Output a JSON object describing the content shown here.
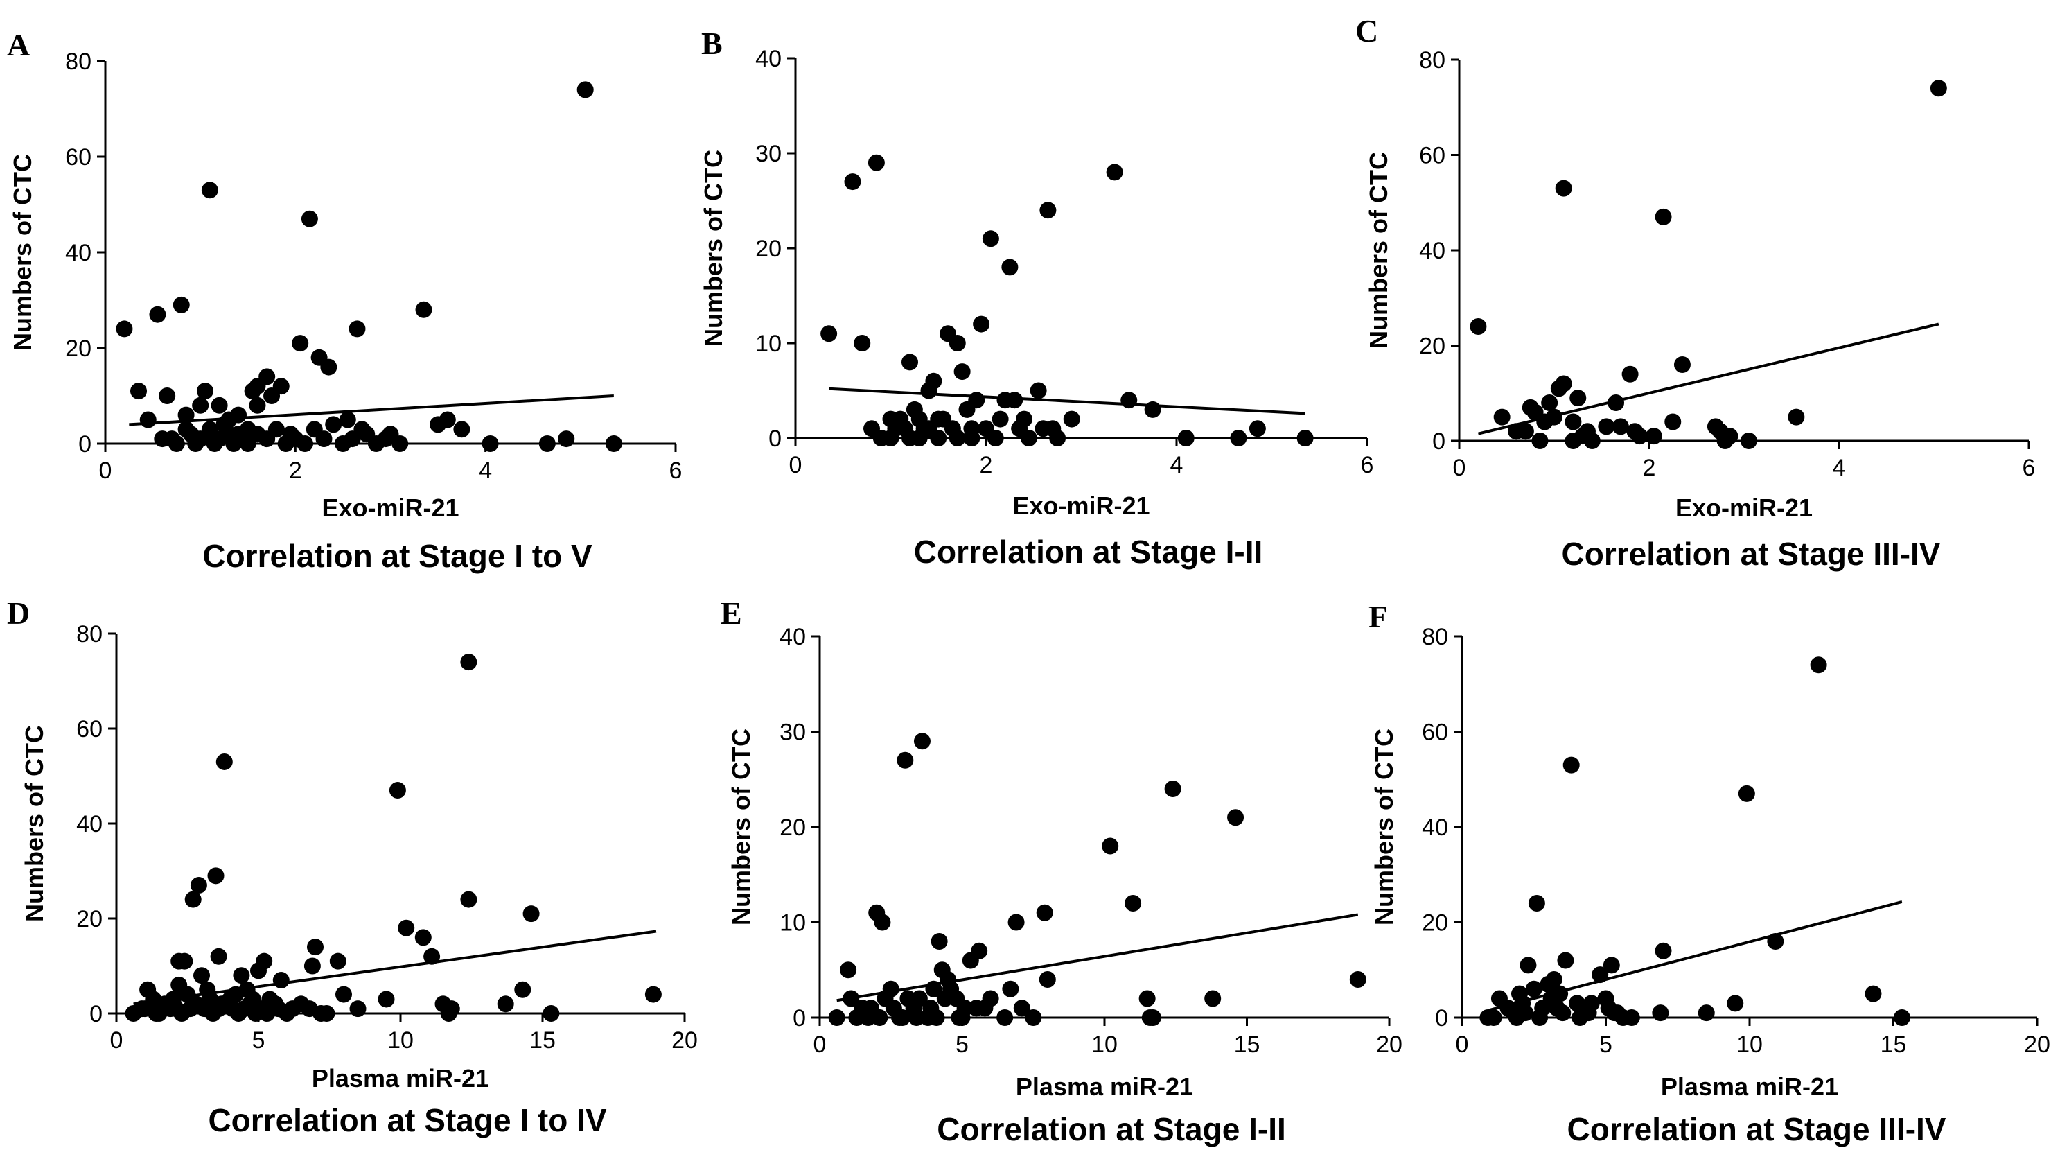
{
  "figure": {
    "background": "#ffffff",
    "ink": "#000000"
  },
  "chart_data": [
    {
      "type": "scatter",
      "letter": "A",
      "xlabel": "Exo-miR-21",
      "ylabel": "Numbers of CTC",
      "caption": "Correlation at Stage I to V",
      "xlim": [
        0,
        6
      ],
      "ylim": [
        0,
        80
      ],
      "xticks": [
        0,
        2,
        4,
        6
      ],
      "yticks": [
        0,
        20,
        40,
        60,
        80
      ],
      "trend": [
        [
          0.25,
          4
        ],
        [
          5.35,
          10
        ]
      ],
      "points": [
        [
          0.2,
          24
        ],
        [
          0.35,
          11
        ],
        [
          0.45,
          5
        ],
        [
          0.55,
          27
        ],
        [
          0.65,
          10
        ],
        [
          0.8,
          29
        ],
        [
          0.85,
          6
        ],
        [
          0.7,
          1
        ],
        [
          0.9,
          2
        ],
        [
          1.0,
          8
        ],
        [
          1.05,
          11
        ],
        [
          1.1,
          53
        ],
        [
          1.2,
          8
        ],
        [
          1.1,
          3
        ],
        [
          1.3,
          5
        ],
        [
          1.4,
          6
        ],
        [
          1.5,
          3
        ],
        [
          1.55,
          11
        ],
        [
          1.6,
          12
        ],
        [
          1.7,
          14
        ],
        [
          1.6,
          8
        ],
        [
          1.75,
          10
        ],
        [
          1.85,
          12
        ],
        [
          2.05,
          21
        ],
        [
          2.15,
          47
        ],
        [
          2.25,
          18
        ],
        [
          2.35,
          16
        ],
        [
          2.65,
          24
        ],
        [
          2.55,
          5
        ],
        [
          2.7,
          3
        ],
        [
          3.35,
          28
        ],
        [
          3.5,
          4
        ],
        [
          3.6,
          5
        ],
        [
          3.75,
          3
        ],
        [
          4.05,
          0
        ],
        [
          4.65,
          0
        ],
        [
          4.85,
          1
        ],
        [
          5.05,
          74
        ],
        [
          5.35,
          0
        ],
        [
          0.6,
          1
        ],
        [
          0.75,
          0
        ],
        [
          0.95,
          0
        ],
        [
          1.0,
          1
        ],
        [
          1.15,
          0
        ],
        [
          1.2,
          1
        ],
        [
          1.3,
          2
        ],
        [
          1.35,
          0
        ],
        [
          1.45,
          1
        ],
        [
          1.5,
          0
        ],
        [
          1.6,
          2
        ],
        [
          1.7,
          1
        ],
        [
          1.8,
          3
        ],
        [
          1.9,
          0
        ],
        [
          1.95,
          2
        ],
        [
          2.0,
          1
        ],
        [
          2.1,
          0
        ],
        [
          2.2,
          3
        ],
        [
          2.3,
          1
        ],
        [
          2.4,
          4
        ],
        [
          2.5,
          0
        ],
        [
          2.6,
          1
        ],
        [
          2.75,
          2
        ],
        [
          2.85,
          0
        ],
        [
          2.95,
          1
        ],
        [
          3.0,
          2
        ],
        [
          3.1,
          0
        ],
        [
          1.25,
          4
        ],
        [
          0.85,
          3
        ],
        [
          1.4,
          2
        ]
      ]
    },
    {
      "type": "scatter",
      "letter": "B",
      "xlabel": "Exo-miR-21",
      "ylabel": "Numbers of CTC",
      "caption": "Correlation at Stage I-II",
      "xlim": [
        0,
        6
      ],
      "ylim": [
        0,
        40
      ],
      "xticks": [
        0,
        2,
        4,
        6
      ],
      "yticks": [
        0,
        10,
        20,
        30,
        40
      ],
      "trend": [
        [
          0.35,
          5.2
        ],
        [
          5.35,
          2.6
        ]
      ],
      "points": [
        [
          0.35,
          11
        ],
        [
          0.6,
          27
        ],
        [
          0.7,
          10
        ],
        [
          0.85,
          29
        ],
        [
          0.8,
          1
        ],
        [
          0.9,
          0
        ],
        [
          1.0,
          2
        ],
        [
          1.05,
          1
        ],
        [
          1.1,
          2
        ],
        [
          1.2,
          0
        ],
        [
          1.25,
          3
        ],
        [
          1.3,
          2
        ],
        [
          1.2,
          8
        ],
        [
          1.4,
          5
        ],
        [
          1.45,
          6
        ],
        [
          1.5,
          2
        ],
        [
          1.6,
          11
        ],
        [
          1.7,
          10
        ],
        [
          1.75,
          7
        ],
        [
          1.8,
          3
        ],
        [
          1.85,
          1
        ],
        [
          1.9,
          4
        ],
        [
          1.95,
          12
        ],
        [
          2.05,
          21
        ],
        [
          2.2,
          4
        ],
        [
          2.25,
          18
        ],
        [
          2.3,
          4
        ],
        [
          2.4,
          2
        ],
        [
          2.55,
          5
        ],
        [
          2.65,
          24
        ],
        [
          2.7,
          1
        ],
        [
          2.9,
          2
        ],
        [
          3.35,
          28
        ],
        [
          3.5,
          4
        ],
        [
          3.75,
          3
        ],
        [
          4.1,
          0
        ],
        [
          4.65,
          0
        ],
        [
          4.85,
          1
        ],
        [
          5.35,
          0
        ],
        [
          1.0,
          0
        ],
        [
          1.15,
          1
        ],
        [
          1.3,
          0
        ],
        [
          1.35,
          1
        ],
        [
          1.5,
          0
        ],
        [
          1.55,
          2
        ],
        [
          1.65,
          1
        ],
        [
          1.7,
          0
        ],
        [
          1.85,
          0
        ],
        [
          2.0,
          1
        ],
        [
          2.1,
          0
        ],
        [
          2.15,
          2
        ],
        [
          2.35,
          1
        ],
        [
          2.45,
          0
        ],
        [
          2.6,
          1
        ],
        [
          2.75,
          0
        ],
        [
          1.4,
          1
        ]
      ]
    },
    {
      "type": "scatter",
      "letter": "C",
      "xlabel": "Exo-miR-21",
      "ylabel": "Numbers of CTC",
      "caption": "Correlation at Stage III-IV",
      "xlim": [
        0,
        6
      ],
      "ylim": [
        0,
        80
      ],
      "xticks": [
        0,
        2,
        4,
        6
      ],
      "yticks": [
        0,
        20,
        40,
        60,
        80
      ],
      "trend": [
        [
          0.2,
          1.5
        ],
        [
          5.05,
          24.5
        ]
      ],
      "points": [
        [
          0.2,
          24
        ],
        [
          0.45,
          5
        ],
        [
          0.6,
          2
        ],
        [
          0.7,
          2
        ],
        [
          0.75,
          7
        ],
        [
          0.8,
          6
        ],
        [
          0.85,
          0
        ],
        [
          0.95,
          8
        ],
        [
          1.0,
          5
        ],
        [
          1.05,
          11
        ],
        [
          1.1,
          12
        ],
        [
          1.1,
          53
        ],
        [
          1.2,
          4
        ],
        [
          1.25,
          9
        ],
        [
          1.3,
          1
        ],
        [
          1.35,
          2
        ],
        [
          1.4,
          0
        ],
        [
          1.55,
          3
        ],
        [
          1.65,
          8
        ],
        [
          1.7,
          3
        ],
        [
          1.8,
          14
        ],
        [
          1.85,
          2
        ],
        [
          1.9,
          1
        ],
        [
          2.05,
          1
        ],
        [
          2.15,
          47
        ],
        [
          2.25,
          4
        ],
        [
          2.35,
          16
        ],
        [
          2.7,
          3
        ],
        [
          2.75,
          2
        ],
        [
          2.8,
          0
        ],
        [
          2.85,
          1
        ],
        [
          3.05,
          0
        ],
        [
          3.55,
          5
        ],
        [
          5.05,
          74
        ],
        [
          0.9,
          4
        ],
        [
          1.2,
          0
        ]
      ]
    },
    {
      "type": "scatter",
      "letter": "D",
      "xlabel": "Plasma miR-21",
      "ylabel": "Numbers of CTC",
      "caption": "Correlation at Stage I to IV",
      "xlim": [
        0,
        20
      ],
      "ylim": [
        0,
        80
      ],
      "xticks": [
        0,
        5,
        10,
        15,
        20
      ],
      "yticks": [
        0,
        20,
        40,
        60,
        80
      ],
      "trend": [
        [
          0.6,
          2
        ],
        [
          19,
          17.3
        ]
      ],
      "points": [
        [
          0.6,
          0
        ],
        [
          0.9,
          1
        ],
        [
          1.1,
          5
        ],
        [
          1.3,
          3
        ],
        [
          1.5,
          0
        ],
        [
          1.7,
          2
        ],
        [
          1.9,
          1
        ],
        [
          2.0,
          3
        ],
        [
          2.2,
          11
        ],
        [
          2.2,
          6
        ],
        [
          2.4,
          11
        ],
        [
          2.5,
          4
        ],
        [
          2.7,
          24
        ],
        [
          2.9,
          27
        ],
        [
          3.0,
          8
        ],
        [
          3.2,
          5
        ],
        [
          3.3,
          3
        ],
        [
          3.5,
          29
        ],
        [
          3.6,
          12
        ],
        [
          3.8,
          53
        ],
        [
          3.9,
          2
        ],
        [
          4.0,
          3
        ],
        [
          4.2,
          4
        ],
        [
          4.4,
          8
        ],
        [
          4.6,
          5
        ],
        [
          4.8,
          3
        ],
        [
          5.0,
          9
        ],
        [
          5.2,
          11
        ],
        [
          5.4,
          3
        ],
        [
          5.6,
          2
        ],
        [
          5.8,
          7
        ],
        [
          6.2,
          1
        ],
        [
          6.5,
          2
        ],
        [
          6.9,
          10
        ],
        [
          7.0,
          14
        ],
        [
          7.4,
          0
        ],
        [
          7.8,
          11
        ],
        [
          8.0,
          4
        ],
        [
          8.5,
          1
        ],
        [
          9.5,
          3
        ],
        [
          9.9,
          47
        ],
        [
          10.2,
          18
        ],
        [
          10.8,
          16
        ],
        [
          11.1,
          12
        ],
        [
          11.5,
          2
        ],
        [
          11.7,
          0
        ],
        [
          11.8,
          1
        ],
        [
          12.4,
          24
        ],
        [
          12.4,
          74
        ],
        [
          13.7,
          2
        ],
        [
          14.3,
          5
        ],
        [
          14.6,
          21
        ],
        [
          15.3,
          0
        ],
        [
          18.9,
          4
        ],
        [
          1.0,
          1
        ],
        [
          1.4,
          0
        ],
        [
          1.8,
          2
        ],
        [
          2.3,
          0
        ],
        [
          2.6,
          1
        ],
        [
          2.8,
          2
        ],
        [
          3.1,
          1
        ],
        [
          3.4,
          0
        ],
        [
          3.7,
          2
        ],
        [
          4.1,
          1
        ],
        [
          4.3,
          0
        ],
        [
          4.5,
          1
        ],
        [
          4.7,
          2
        ],
        [
          4.9,
          0
        ],
        [
          5.1,
          1
        ],
        [
          5.3,
          0
        ],
        [
          5.7,
          1
        ],
        [
          6.0,
          0
        ],
        [
          6.8,
          1
        ],
        [
          7.2,
          0
        ],
        [
          2.1,
          1
        ],
        [
          3.6,
          1
        ]
      ]
    },
    {
      "type": "scatter",
      "letter": "E",
      "xlabel": "Plasma miR-21",
      "ylabel": "Numbers of CTC",
      "caption": "Correlation at Stage I-II",
      "xlim": [
        0,
        20
      ],
      "ylim": [
        0,
        40
      ],
      "xticks": [
        0,
        5,
        10,
        15,
        20
      ],
      "yticks": [
        0,
        10,
        20,
        30,
        40
      ],
      "trend": [
        [
          0.6,
          1.8
        ],
        [
          18.9,
          10.8
        ]
      ],
      "points": [
        [
          0.6,
          0
        ],
        [
          1.0,
          5
        ],
        [
          1.1,
          2
        ],
        [
          1.3,
          0
        ],
        [
          1.5,
          1
        ],
        [
          1.7,
          0
        ],
        [
          2.0,
          11
        ],
        [
          2.2,
          10
        ],
        [
          2.3,
          2
        ],
        [
          2.5,
          3
        ],
        [
          2.8,
          0
        ],
        [
          3.0,
          27
        ],
        [
          3.1,
          2
        ],
        [
          3.3,
          1
        ],
        [
          3.6,
          29
        ],
        [
          3.8,
          0
        ],
        [
          4.0,
          3
        ],
        [
          4.2,
          8
        ],
        [
          4.3,
          5
        ],
        [
          4.5,
          4
        ],
        [
          4.6,
          3
        ],
        [
          4.8,
          2
        ],
        [
          4.9,
          0
        ],
        [
          5.1,
          1
        ],
        [
          5.3,
          6
        ],
        [
          5.6,
          7
        ],
        [
          5.8,
          1
        ],
        [
          6.0,
          2
        ],
        [
          6.5,
          0
        ],
        [
          6.7,
          3
        ],
        [
          6.9,
          10
        ],
        [
          7.1,
          1
        ],
        [
          7.5,
          0
        ],
        [
          7.9,
          11
        ],
        [
          8.0,
          4
        ],
        [
          10.2,
          18
        ],
        [
          11.0,
          12
        ],
        [
          11.5,
          2
        ],
        [
          11.6,
          0
        ],
        [
          11.7,
          0
        ],
        [
          12.4,
          24
        ],
        [
          13.8,
          2
        ],
        [
          14.6,
          21
        ],
        [
          18.9,
          4
        ],
        [
          1.8,
          1
        ],
        [
          2.1,
          0
        ],
        [
          2.6,
          1
        ],
        [
          2.9,
          0
        ],
        [
          3.4,
          0
        ],
        [
          3.9,
          1
        ],
        [
          4.4,
          2
        ],
        [
          5.0,
          0
        ],
        [
          5.5,
          1
        ],
        [
          3.5,
          2
        ],
        [
          4.1,
          0
        ]
      ]
    },
    {
      "type": "scatter",
      "letter": "F",
      "xlabel": "Plasma miR-21",
      "ylabel": "Numbers of CTC",
      "caption": "Correlation at Stage III-IV",
      "xlim": [
        0,
        20
      ],
      "ylim": [
        0,
        80
      ],
      "xticks": [
        0,
        5,
        10,
        15,
        20
      ],
      "yticks": [
        0,
        20,
        40,
        60,
        80
      ],
      "trend": [
        [
          0.9,
          1.5
        ],
        [
          15.3,
          24.3
        ]
      ],
      "points": [
        [
          0.9,
          0
        ],
        [
          1.1,
          0
        ],
        [
          1.3,
          4
        ],
        [
          1.6,
          2
        ],
        [
          1.8,
          1
        ],
        [
          2.0,
          5
        ],
        [
          2.1,
          3
        ],
        [
          2.3,
          11
        ],
        [
          2.5,
          6
        ],
        [
          2.6,
          24
        ],
        [
          2.8,
          2
        ],
        [
          3.0,
          7
        ],
        [
          3.2,
          8
        ],
        [
          3.4,
          5
        ],
        [
          3.6,
          12
        ],
        [
          3.8,
          53
        ],
        [
          4.0,
          3
        ],
        [
          4.2,
          2
        ],
        [
          4.5,
          3
        ],
        [
          4.8,
          9
        ],
        [
          5.0,
          4
        ],
        [
          5.1,
          2
        ],
        [
          5.2,
          11
        ],
        [
          5.4,
          1
        ],
        [
          5.6,
          0
        ],
        [
          5.9,
          0
        ],
        [
          6.9,
          1
        ],
        [
          7.0,
          14
        ],
        [
          8.5,
          1
        ],
        [
          9.5,
          3
        ],
        [
          9.9,
          47
        ],
        [
          10.9,
          16
        ],
        [
          12.4,
          74
        ],
        [
          14.3,
          5
        ],
        [
          15.3,
          0
        ],
        [
          1.9,
          0
        ],
        [
          2.2,
          1
        ],
        [
          2.7,
          0
        ],
        [
          3.3,
          2
        ],
        [
          3.5,
          1
        ],
        [
          4.1,
          0
        ],
        [
          4.4,
          1
        ],
        [
          5.3,
          1
        ],
        [
          3.1,
          4
        ]
      ]
    }
  ]
}
